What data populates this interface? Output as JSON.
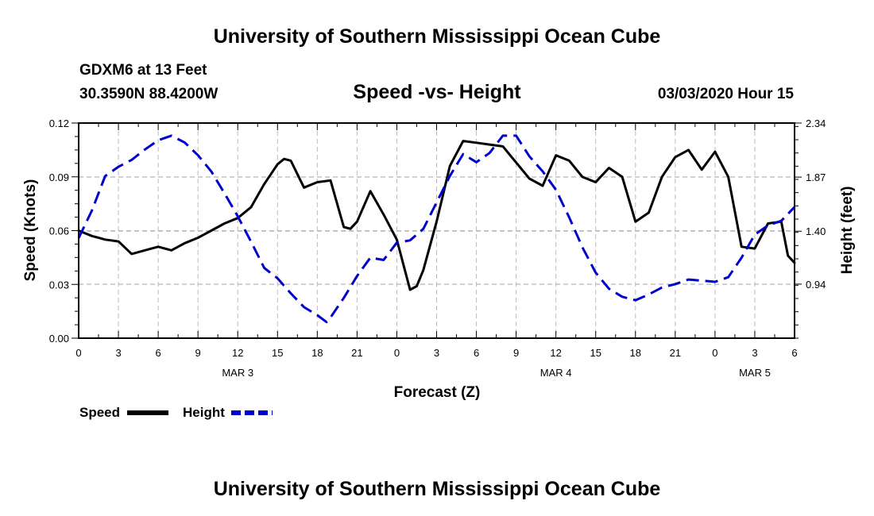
{
  "chart_data": {
    "type": "line",
    "main_title": "University of Southern Mississippi Ocean Cube",
    "footer_title": "University of Southern Mississippi Ocean Cube",
    "station": "GDXM6 at 13 Feet",
    "coords": "30.3590N 88.4200W",
    "title": "Speed -vs- Height",
    "datetime": "03/03/2020 Hour 15",
    "xlabel": "Forecast (Z)",
    "ylabel": "Speed (Knots)",
    "y2label": "Height (feet)",
    "xlim": [
      0,
      54
    ],
    "ylim": [
      0,
      0.12
    ],
    "y2lim": [
      0.47,
      2.34
    ],
    "x_ticks": [
      0,
      3,
      6,
      9,
      12,
      15,
      18,
      21,
      24,
      27,
      30,
      33,
      36,
      39,
      42,
      45,
      48,
      51,
      54
    ],
    "x_tick_labels": [
      "0",
      "3",
      "6",
      "9",
      "12",
      "15",
      "18",
      "21",
      "0",
      "3",
      "6",
      "9",
      "12",
      "15",
      "18",
      "21",
      "0",
      "3",
      "6"
    ],
    "day_labels": [
      {
        "label": "MAR 3",
        "x": 12
      },
      {
        "label": "MAR 4",
        "x": 36
      },
      {
        "label": "MAR 5",
        "x": 51
      }
    ],
    "y_ticks": [
      0,
      0.03,
      0.06,
      0.09,
      0.12
    ],
    "y_tick_labels": [
      "0.00",
      "0.03",
      "0.06",
      "0.09",
      "0.12"
    ],
    "y2_ticks": [
      0.94,
      1.4,
      1.87,
      2.34
    ],
    "y2_tick_labels": [
      "0.94",
      "1.40",
      "1.87",
      "2.34"
    ],
    "grid": true,
    "legend": [
      {
        "name": "Speed",
        "color": "#000000",
        "dash": false
      },
      {
        "name": "Height",
        "color": "#0000cc",
        "dash": true
      }
    ],
    "series": [
      {
        "name": "Speed",
        "axis": "left",
        "color": "#000000",
        "x": [
          0,
          1,
          2,
          3,
          4,
          5,
          6,
          7,
          8,
          9,
          10,
          11,
          12,
          13,
          14,
          15,
          15.5,
          16,
          17,
          18,
          19,
          20,
          20.5,
          21,
          22,
          23,
          24,
          25,
          25.5,
          26,
          27,
          28,
          29,
          30,
          31,
          32,
          33,
          34,
          35,
          36,
          37,
          38,
          39,
          40,
          41,
          42,
          43,
          44,
          45,
          46,
          47,
          48,
          49,
          50,
          51,
          52,
          53,
          53.5,
          54
        ],
        "values": [
          0.06,
          0.057,
          0.055,
          0.054,
          0.047,
          0.049,
          0.051,
          0.049,
          0.053,
          0.056,
          0.06,
          0.064,
          0.067,
          0.073,
          0.086,
          0.097,
          0.1,
          0.099,
          0.084,
          0.087,
          0.088,
          0.062,
          0.061,
          0.065,
          0.082,
          0.069,
          0.055,
          0.027,
          0.029,
          0.038,
          0.065,
          0.096,
          0.11,
          0.109,
          0.108,
          0.107,
          0.098,
          0.089,
          0.085,
          0.102,
          0.099,
          0.09,
          0.087,
          0.095,
          0.09,
          0.065,
          0.07,
          0.09,
          0.101,
          0.105,
          0.094,
          0.104,
          0.09,
          0.051,
          0.05,
          0.064,
          0.065,
          0.046,
          0.042
        ]
      },
      {
        "name": "Height",
        "axis": "right",
        "color": "#0000cc",
        "x": [
          0,
          1,
          2,
          3,
          4,
          5,
          6,
          7,
          8,
          9,
          10,
          11,
          12,
          13,
          14,
          15,
          16,
          17,
          18,
          18.7,
          19,
          20,
          21,
          22,
          23,
          24,
          25,
          26,
          27,
          28,
          29,
          30,
          31,
          32,
          33,
          34,
          35,
          36,
          37,
          38,
          39,
          40,
          41,
          42,
          43,
          44,
          45,
          46,
          47,
          48,
          49,
          50,
          51,
          52,
          53,
          54
        ],
        "values": [
          1.34,
          1.58,
          1.88,
          1.96,
          2.02,
          2.11,
          2.19,
          2.23,
          2.17,
          2.06,
          1.92,
          1.73,
          1.53,
          1.31,
          1.08,
          0.99,
          0.86,
          0.74,
          0.67,
          0.61,
          0.65,
          0.82,
          1.01,
          1.17,
          1.15,
          1.3,
          1.32,
          1.42,
          1.65,
          1.88,
          2.07,
          2.0,
          2.08,
          2.23,
          2.23,
          2.05,
          1.92,
          1.76,
          1.52,
          1.26,
          1.04,
          0.9,
          0.83,
          0.8,
          0.85,
          0.91,
          0.94,
          0.98,
          0.97,
          0.96,
          1.0,
          1.17,
          1.37,
          1.45,
          1.49,
          1.61
        ]
      }
    ]
  }
}
